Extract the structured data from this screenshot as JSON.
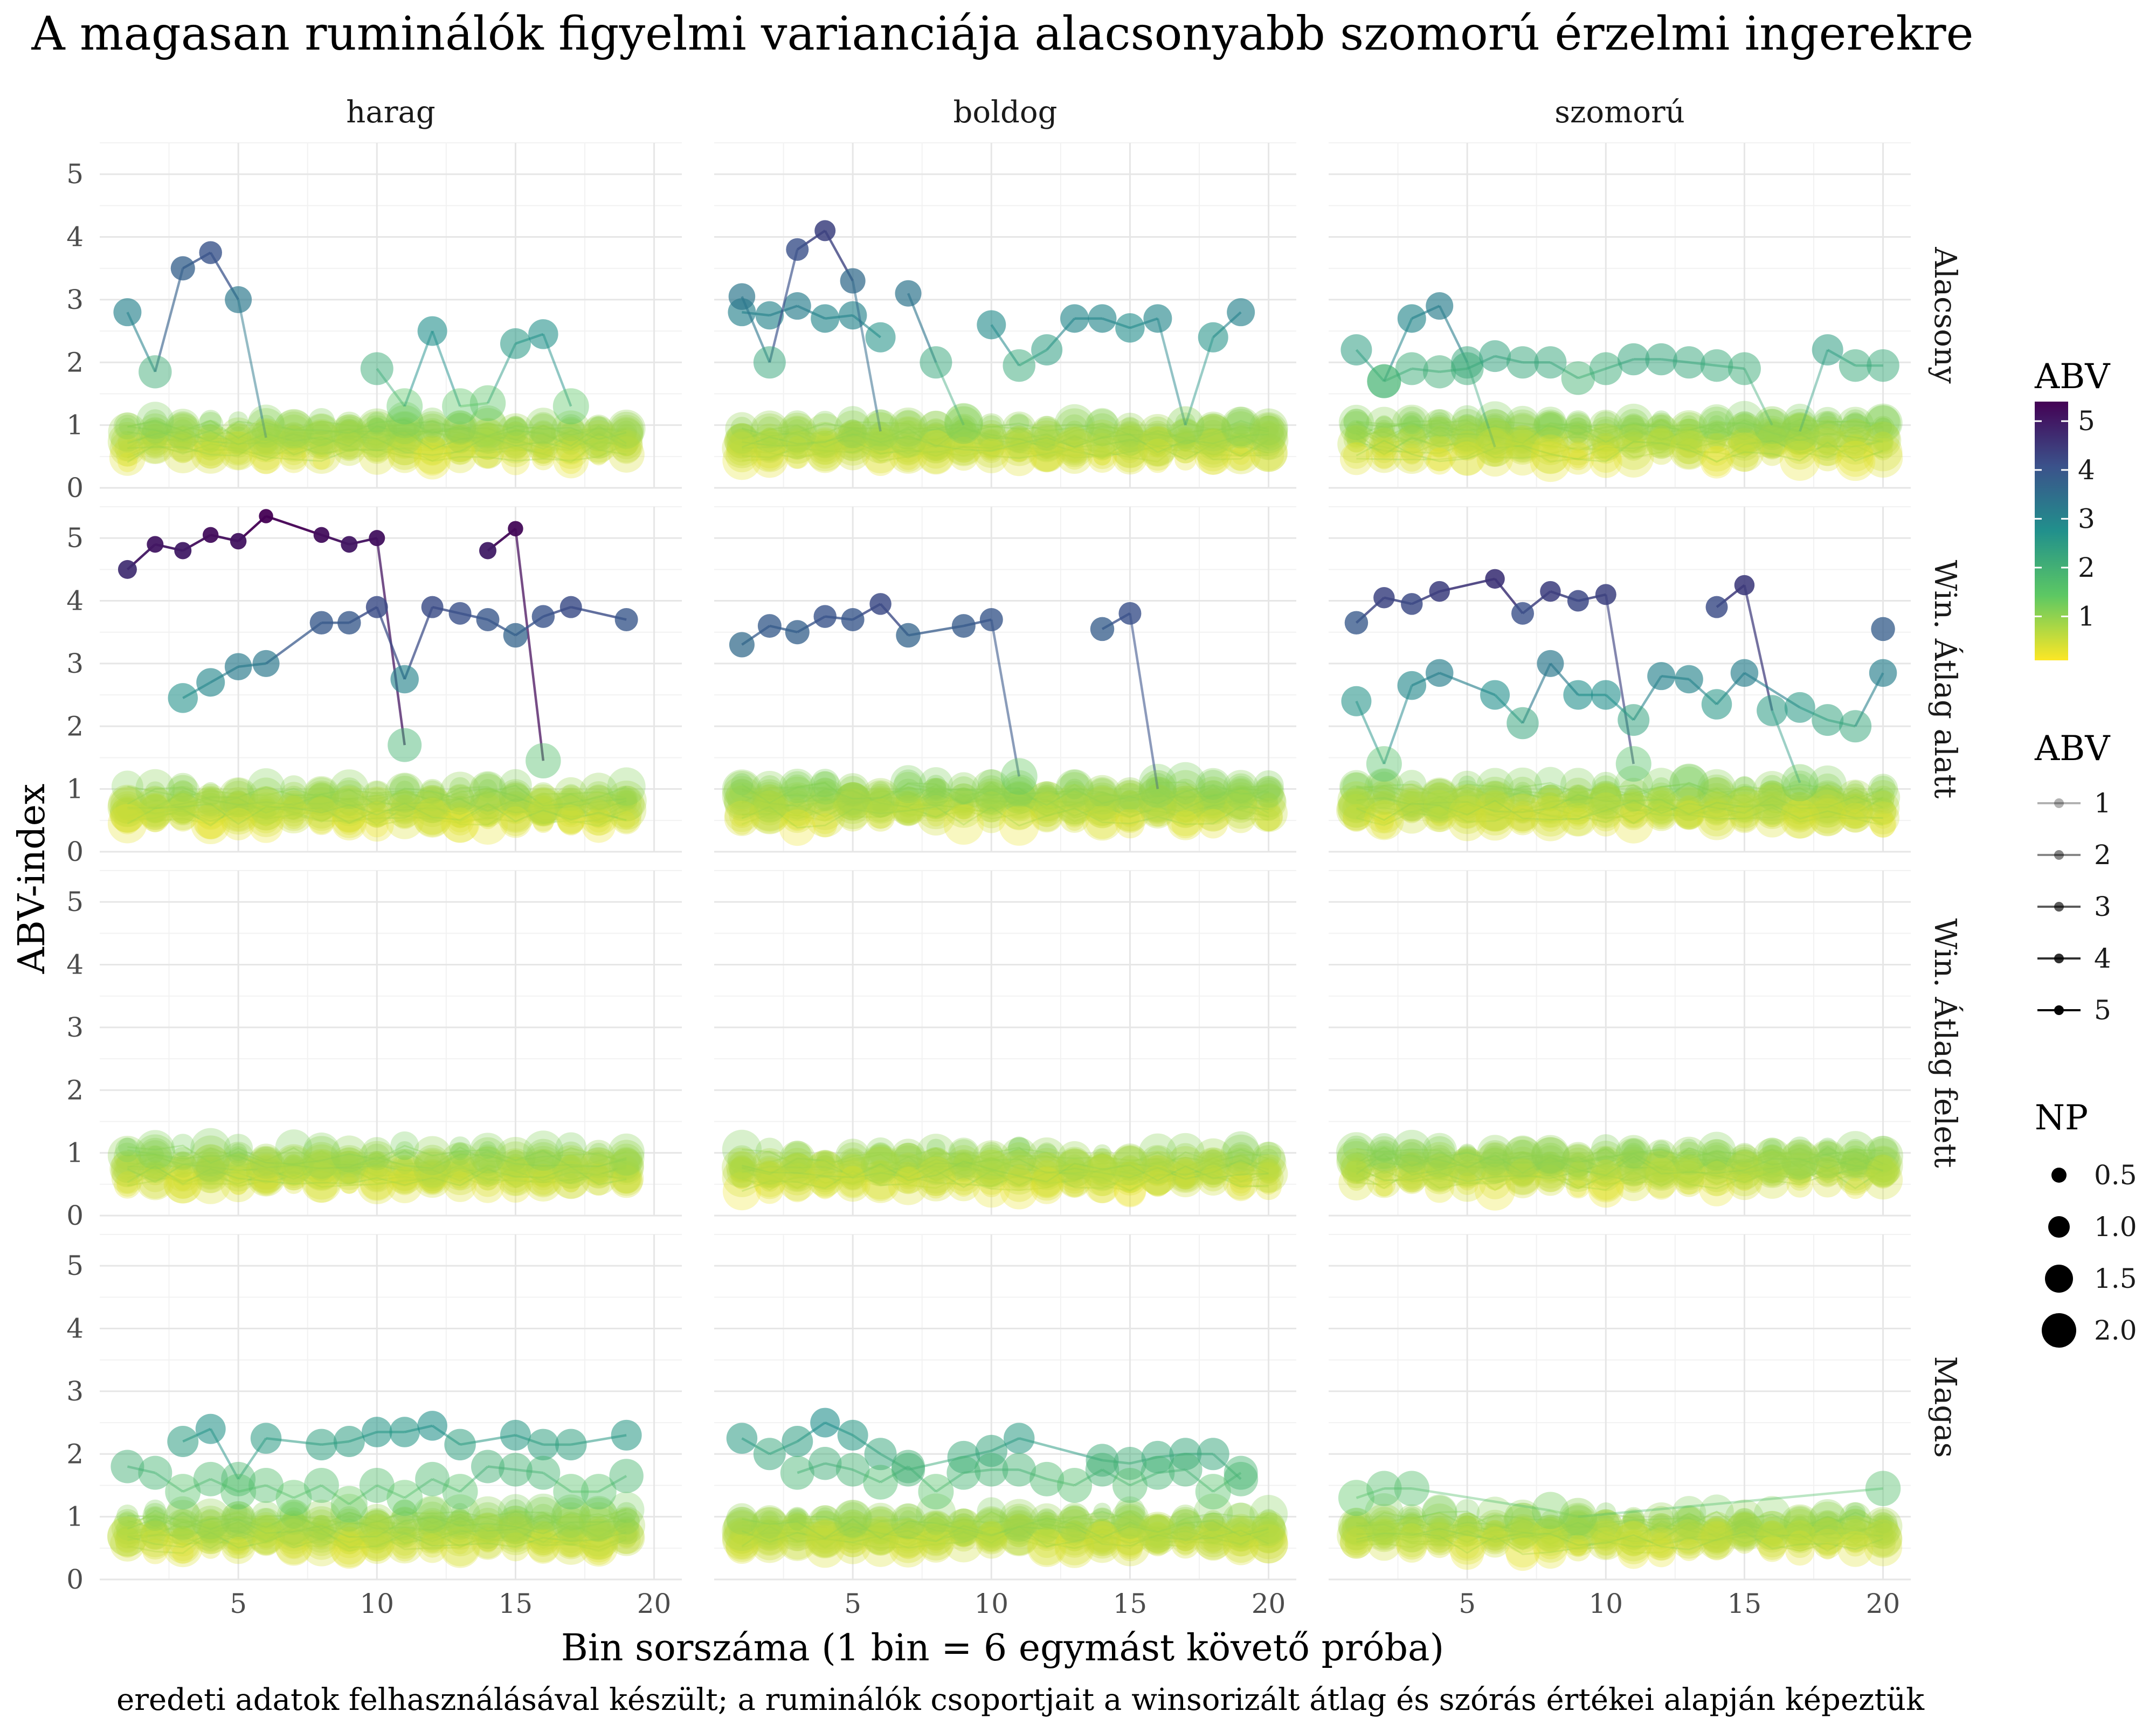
{
  "chart_data": {
    "type": "line",
    "title": "A magasan ruminálók figyelmi varianciája alacsonyabb szomorú érzelmi ingerekre",
    "xlabel": "Bin sorszáma (1 bin = 6 egymást követő próba)",
    "ylabel": "ABV-index",
    "caption": "eredeti adatok felhasználásával készült; a ruminálók csoportjait a winsorizált átlag és szórás értékei alapján képeztük",
    "columns": [
      "harag",
      "boldog",
      "szomorú"
    ],
    "rows": [
      "Alacsony",
      "Win. Átlag alatt",
      "Win. Átlag felett",
      "Magas"
    ],
    "x_ticks": [
      5,
      10,
      15,
      20
    ],
    "y_ticks": [
      0,
      1,
      2,
      3,
      4,
      5
    ],
    "xlim": [
      0,
      21
    ],
    "ylim": [
      0,
      5.5
    ],
    "grid": true,
    "legend_placement": "right",
    "colors": {
      "high": "#440154",
      "mid_high": "#3b528b",
      "mid": "#21908c",
      "mid_low": "#5dc863",
      "low": "#fde725"
    },
    "legend": {
      "color_title": "ABV",
      "color_ticks": [
        "1",
        "2",
        "3",
        "4",
        "5"
      ],
      "alpha_title": "ABV",
      "alpha_ticks": [
        "1",
        "2",
        "3",
        "4",
        "5"
      ],
      "size_title": "NP",
      "size_ticks": [
        "0.5",
        "1.0",
        "1.5",
        "2.0"
      ]
    },
    "background_band": {
      "description": "many overlapping low-ABV participant trajectories",
      "y_center": 0.75,
      "y_spread": 0.2
    },
    "series": [
      {
        "panel": [
          0,
          0
        ],
        "x": [
          1,
          2,
          3,
          4,
          5,
          6
        ],
        "y": [
          2.8,
          1.85,
          3.5,
          3.75,
          3.0,
          0.8
        ]
      },
      {
        "panel": [
          0,
          0
        ],
        "x": [
          10,
          11,
          12,
          13,
          14,
          15,
          16,
          17
        ],
        "y": [
          1.9,
          1.3,
          2.5,
          1.3,
          1.35,
          2.3,
          2.45,
          1.3
        ]
      },
      {
        "panel": [
          0,
          1
        ],
        "x": [
          1,
          2,
          3,
          4,
          5,
          6
        ],
        "y": [
          2.8,
          2.75,
          2.9,
          2.7,
          2.75,
          2.4
        ]
      },
      {
        "panel": [
          0,
          1
        ],
        "x": [
          1,
          2,
          3,
          4,
          5,
          6
        ],
        "y": [
          3.05,
          2.0,
          3.8,
          4.1,
          3.3,
          0.9
        ]
      },
      {
        "panel": [
          0,
          1
        ],
        "x": [
          7,
          8,
          9
        ],
        "y": [
          3.1,
          2.0,
          1.0
        ]
      },
      {
        "panel": [
          0,
          1
        ],
        "x": [
          10,
          11,
          12,
          13,
          14,
          15,
          16,
          17,
          18,
          19
        ],
        "y": [
          2.6,
          1.95,
          2.2,
          2.7,
          2.7,
          2.55,
          2.7,
          1.0,
          2.4,
          2.8
        ]
      },
      {
        "panel": [
          0,
          2
        ],
        "x": [
          1,
          2,
          3,
          4,
          5,
          6
        ],
        "y": [
          2.2,
          1.7,
          2.7,
          2.9,
          2.0,
          0.65
        ]
      },
      {
        "panel": [
          0,
          2
        ],
        "x": [
          2,
          3,
          4,
          5,
          6,
          7,
          8,
          9,
          10,
          11,
          12,
          13,
          14,
          15,
          16,
          17,
          18,
          19,
          20
        ],
        "y": [
          1.7,
          1.9,
          1.85,
          1.9,
          2.1,
          2.0,
          2.0,
          1.75,
          1.9,
          2.05,
          2.05,
          2.0,
          1.95,
          1.9,
          1.0,
          0.9,
          2.2,
          1.95,
          1.95
        ]
      },
      {
        "panel": [
          1,
          0
        ],
        "x": [
          1,
          2,
          3,
          4,
          5,
          6,
          8,
          9,
          10,
          11
        ],
        "y": [
          4.5,
          4.9,
          4.8,
          5.05,
          4.95,
          5.35,
          5.05,
          4.9,
          5.0,
          1.7
        ]
      },
      {
        "panel": [
          1,
          0
        ],
        "x": [
          14,
          15,
          16
        ],
        "y": [
          4.8,
          5.15,
          1.45
        ]
      },
      {
        "panel": [
          1,
          0
        ],
        "x": [
          3,
          4,
          5,
          6,
          8,
          9,
          10,
          11,
          12,
          13,
          14,
          15,
          16,
          17,
          19
        ],
        "y": [
          2.45,
          2.7,
          2.95,
          3.0,
          3.65,
          3.65,
          3.9,
          2.75,
          3.9,
          3.8,
          3.7,
          3.45,
          3.75,
          3.9,
          3.7
        ]
      },
      {
        "panel": [
          1,
          1
        ],
        "x": [
          1,
          2,
          3,
          4,
          5,
          6,
          7,
          9,
          10,
          11
        ],
        "y": [
          3.3,
          3.6,
          3.5,
          3.75,
          3.7,
          3.95,
          3.45,
          3.6,
          3.7,
          1.2
        ]
      },
      {
        "panel": [
          1,
          1
        ],
        "x": [
          14,
          15,
          16
        ],
        "y": [
          3.55,
          3.8,
          1.0
        ]
      },
      {
        "panel": [
          1,
          2
        ],
        "x": [
          1,
          2,
          3,
          4,
          6,
          7,
          8,
          9,
          10,
          11
        ],
        "y": [
          3.65,
          4.05,
          3.95,
          4.15,
          4.35,
          3.8,
          4.15,
          4.0,
          4.1,
          1.4
        ]
      },
      {
        "panel": [
          1,
          2
        ],
        "x": [
          14,
          15,
          16,
          17
        ],
        "y": [
          3.9,
          4.25,
          2.25,
          1.1
        ]
      },
      {
        "panel": [
          1,
          2
        ],
        "x": [
          1,
          2,
          3,
          4,
          6,
          7,
          8,
          9,
          10,
          11,
          12,
          13,
          14,
          15,
          17,
          18,
          19,
          20
        ],
        "y": [
          2.4,
          1.4,
          2.65,
          2.85,
          2.5,
          2.05,
          3.0,
          2.5,
          2.5,
          2.1,
          2.8,
          2.75,
          2.35,
          2.85,
          2.3,
          2.1,
          2.0,
          2.85
        ]
      },
      {
        "panel": [
          1,
          2
        ],
        "x": [
          20
        ],
        "y": [
          3.55
        ]
      },
      {
        "panel": [
          3,
          0
        ],
        "x": [
          3,
          4,
          5,
          6,
          8,
          9,
          10,
          11,
          12,
          13,
          15,
          16,
          17,
          19
        ],
        "y": [
          2.2,
          2.4,
          1.6,
          2.25,
          2.15,
          2.2,
          2.35,
          2.35,
          2.45,
          2.15,
          2.3,
          2.15,
          2.15,
          2.3
        ]
      },
      {
        "panel": [
          3,
          0
        ],
        "x": [
          1,
          2,
          3,
          4,
          5,
          6,
          7,
          8,
          9,
          10,
          11,
          12,
          13,
          14,
          15,
          16,
          17,
          18,
          19
        ],
        "y": [
          1.8,
          1.7,
          1.4,
          1.6,
          1.4,
          1.5,
          1.3,
          1.5,
          1.2,
          1.5,
          1.3,
          1.6,
          1.4,
          1.8,
          1.75,
          1.7,
          1.4,
          1.4,
          1.65
        ]
      },
      {
        "panel": [
          3,
          1
        ],
        "x": [
          1,
          2,
          3,
          4,
          5,
          6,
          7,
          9,
          10,
          11,
          14,
          15,
          16,
          17,
          18,
          19
        ],
        "y": [
          2.25,
          2.0,
          2.2,
          2.5,
          2.3,
          2.0,
          1.75,
          1.95,
          2.05,
          2.25,
          1.9,
          1.85,
          1.95,
          2.0,
          2.0,
          1.6
        ]
      },
      {
        "panel": [
          3,
          1
        ],
        "x": [
          3,
          4,
          5,
          6,
          7,
          8,
          9,
          10,
          11,
          12,
          13,
          14,
          15,
          16,
          17,
          18,
          19
        ],
        "y": [
          1.7,
          1.85,
          1.75,
          1.55,
          1.8,
          1.4,
          1.7,
          1.75,
          1.75,
          1.6,
          1.5,
          1.75,
          1.5,
          1.7,
          1.75,
          1.4,
          1.7
        ]
      },
      {
        "panel": [
          3,
          2
        ],
        "x": [
          1,
          2,
          3,
          8,
          9,
          20
        ],
        "y": [
          1.3,
          1.45,
          1.45,
          1.1,
          1.0,
          1.45
        ]
      }
    ]
  }
}
